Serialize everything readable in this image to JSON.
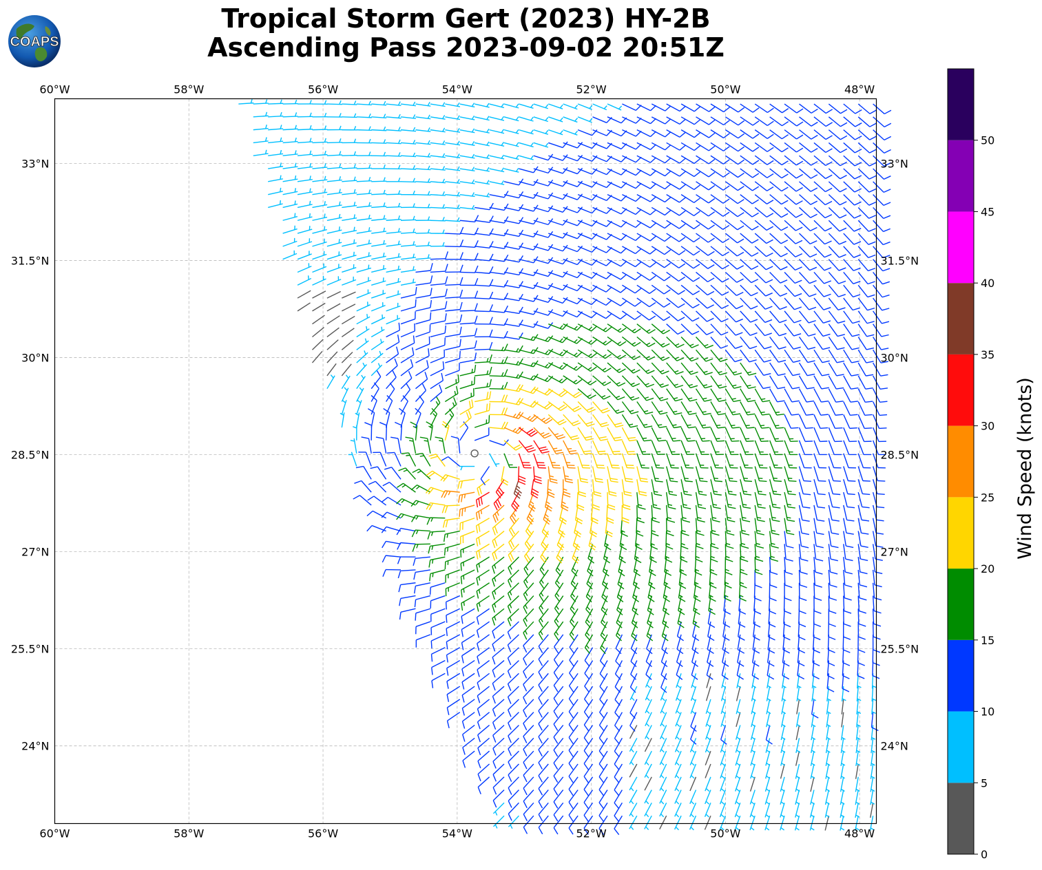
{
  "header": {
    "title_line1": "Tropical Storm Gert (2023) HY-2B",
    "title_line2": "Ascending Pass 2023-09-02 20:51Z",
    "logo_text": "COAPS"
  },
  "map": {
    "projection": "plate-carree",
    "lon_range": [
      -60,
      -47.75
    ],
    "lat_range": [
      22.8,
      34.0
    ],
    "lon_ticks": [
      {
        "value": -60,
        "label": "60°W"
      },
      {
        "value": -58,
        "label": "58°W"
      },
      {
        "value": -56,
        "label": "56°W"
      },
      {
        "value": -54,
        "label": "54°W"
      },
      {
        "value": -52,
        "label": "52°W"
      },
      {
        "value": -50,
        "label": "50°W"
      },
      {
        "value": -48,
        "label": "48°W"
      }
    ],
    "lat_ticks": [
      {
        "value": 33,
        "label": "33°N"
      },
      {
        "value": 31.5,
        "label": "31.5°N"
      },
      {
        "value": 30,
        "label": "30°N"
      },
      {
        "value": 28.5,
        "label": "28.5°N"
      },
      {
        "value": 27,
        "label": "27°N"
      },
      {
        "value": 25.5,
        "label": "25.5°N"
      },
      {
        "value": 24,
        "label": "24°N"
      }
    ],
    "gridlines": true,
    "storm_center": {
      "lon": -53.6,
      "lat": 28.5
    }
  },
  "colorbar": {
    "label": "Wind Speed (knots)",
    "bounds": [
      0,
      5,
      10,
      15,
      20,
      25,
      30,
      35,
      40,
      45,
      50,
      55
    ],
    "tick_labels": [
      "0",
      "5",
      "10",
      "15",
      "20",
      "25",
      "30",
      "35",
      "40",
      "45",
      "50"
    ],
    "colors": [
      "#585858",
      "#00bfff",
      "#0038ff",
      "#008c00",
      "#ffd600",
      "#ff8c00",
      "#ff0c0c",
      "#803a28",
      "#ff00ff",
      "#8400b4",
      "#2a005e"
    ]
  }
}
